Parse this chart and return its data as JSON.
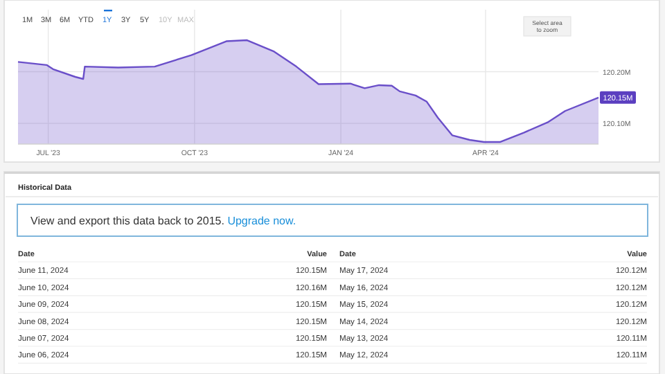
{
  "chart_data": {
    "type": "area",
    "x": [
      "2023-06-12",
      "2023-06-30",
      "2023-07-04",
      "2023-07-18",
      "2023-07-23",
      "2023-07-24",
      "2023-08-14",
      "2023-09-06",
      "2023-09-29",
      "2023-10-21",
      "2023-11-03",
      "2023-11-20",
      "2023-12-04",
      "2023-12-18",
      "2024-01-07",
      "2024-01-16",
      "2024-01-25",
      "2024-02-02",
      "2024-02-07",
      "2024-02-17",
      "2024-02-24",
      "2024-03-02",
      "2024-03-11",
      "2024-03-22",
      "2024-03-31",
      "2024-04-10",
      "2024-04-25",
      "2024-05-10",
      "2024-05-21",
      "2024-06-11"
    ],
    "series": [
      {
        "color": "#6a4fc9",
        "values": [
          120.219,
          120.213,
          120.205,
          120.19,
          120.186,
          120.21,
          120.208,
          120.21,
          120.232,
          120.259,
          120.261,
          120.239,
          120.21,
          120.176,
          120.177,
          120.168,
          120.174,
          120.173,
          120.162,
          120.154,
          120.142,
          120.111,
          120.077,
          120.068,
          120.064,
          120.064,
          120.082,
          120.102,
          120.124,
          120.15
        ]
      }
    ],
    "xlim": [
      "2023-06-12",
      "2024-06-11"
    ],
    "xticks": [
      {
        "value": "2023-07-01",
        "label": "JUL '23"
      },
      {
        "value": "2023-10-01",
        "label": "OCT '23"
      },
      {
        "value": "2024-01-01",
        "label": "JAN '24"
      },
      {
        "value": "2024-04-01",
        "label": "APR '24"
      }
    ],
    "ylim": [
      120.06,
      120.32
    ],
    "yticks": [
      {
        "value": 120.1,
        "label": "120.10M"
      },
      {
        "value": 120.2,
        "label": "120.20M"
      }
    ],
    "grid": true,
    "annotations": [
      "1M",
      "3M",
      "6M",
      "YTD",
      "1Y",
      "3Y",
      "5Y",
      "10Y",
      "MAX",
      "Select area to zoom",
      {
        "text": "120.15M",
        "x": "2024-06-11",
        "y": 120.15
      },
      "Historical Data",
      "View and export this data back to 2015.",
      "Upgrade now.",
      "Date",
      "Value",
      "Date",
      "Value",
      "June 11, 2024",
      "120.15M",
      "May 17, 2024",
      "120.12M",
      "June 10, 2024",
      "120.16M",
      "May 16, 2024",
      "120.12M",
      "June 09, 2024",
      "120.15M",
      "May 15, 2024",
      "120.12M",
      "June 08, 2024",
      "120.15M",
      "May 14, 2024",
      "120.12M",
      "June 07, 2024",
      "120.15M",
      "May 13, 2024",
      "120.11M",
      "June 06, 2024",
      "120.15M",
      "May 12, 2024",
      "120.11M"
    ]
  }
}
